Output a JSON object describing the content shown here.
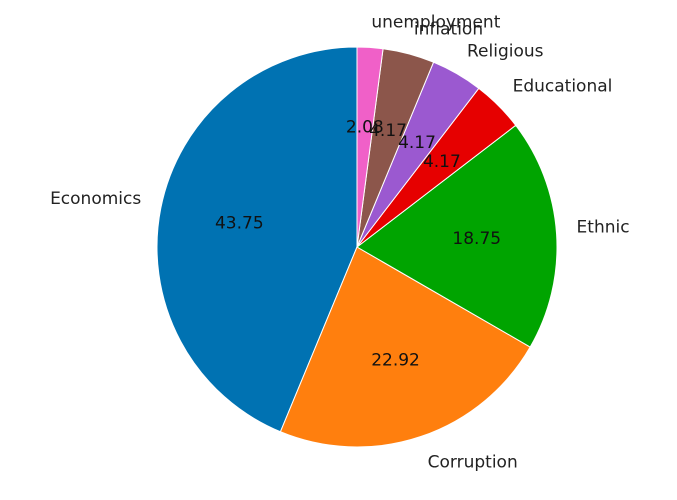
{
  "chart_data": {
    "type": "pie",
    "title": "",
    "start_angle_deg": 90,
    "direction": "counterclockwise",
    "slices": [
      {
        "label": "Economics",
        "value": 43.75,
        "value_label": "43.75",
        "color": "#0072b2"
      },
      {
        "label": "Corruption",
        "value": 22.92,
        "value_label": "22.92",
        "color": "#ff7f0e"
      },
      {
        "label": "Ethnic",
        "value": 18.75,
        "value_label": "18.75",
        "color": "#00a400"
      },
      {
        "label": "Educational",
        "value": 4.17,
        "value_label": "4.17",
        "color": "#e60000"
      },
      {
        "label": "Religious",
        "value": 4.17,
        "value_label": "4.17",
        "color": "#9b59d0"
      },
      {
        "label": "inflation",
        "value": 4.17,
        "value_label": "4.17",
        "color": "#8c564b"
      },
      {
        "label": "unemployment",
        "value": 2.08,
        "value_label": "2.08",
        "color": "#f060c8"
      }
    ]
  }
}
